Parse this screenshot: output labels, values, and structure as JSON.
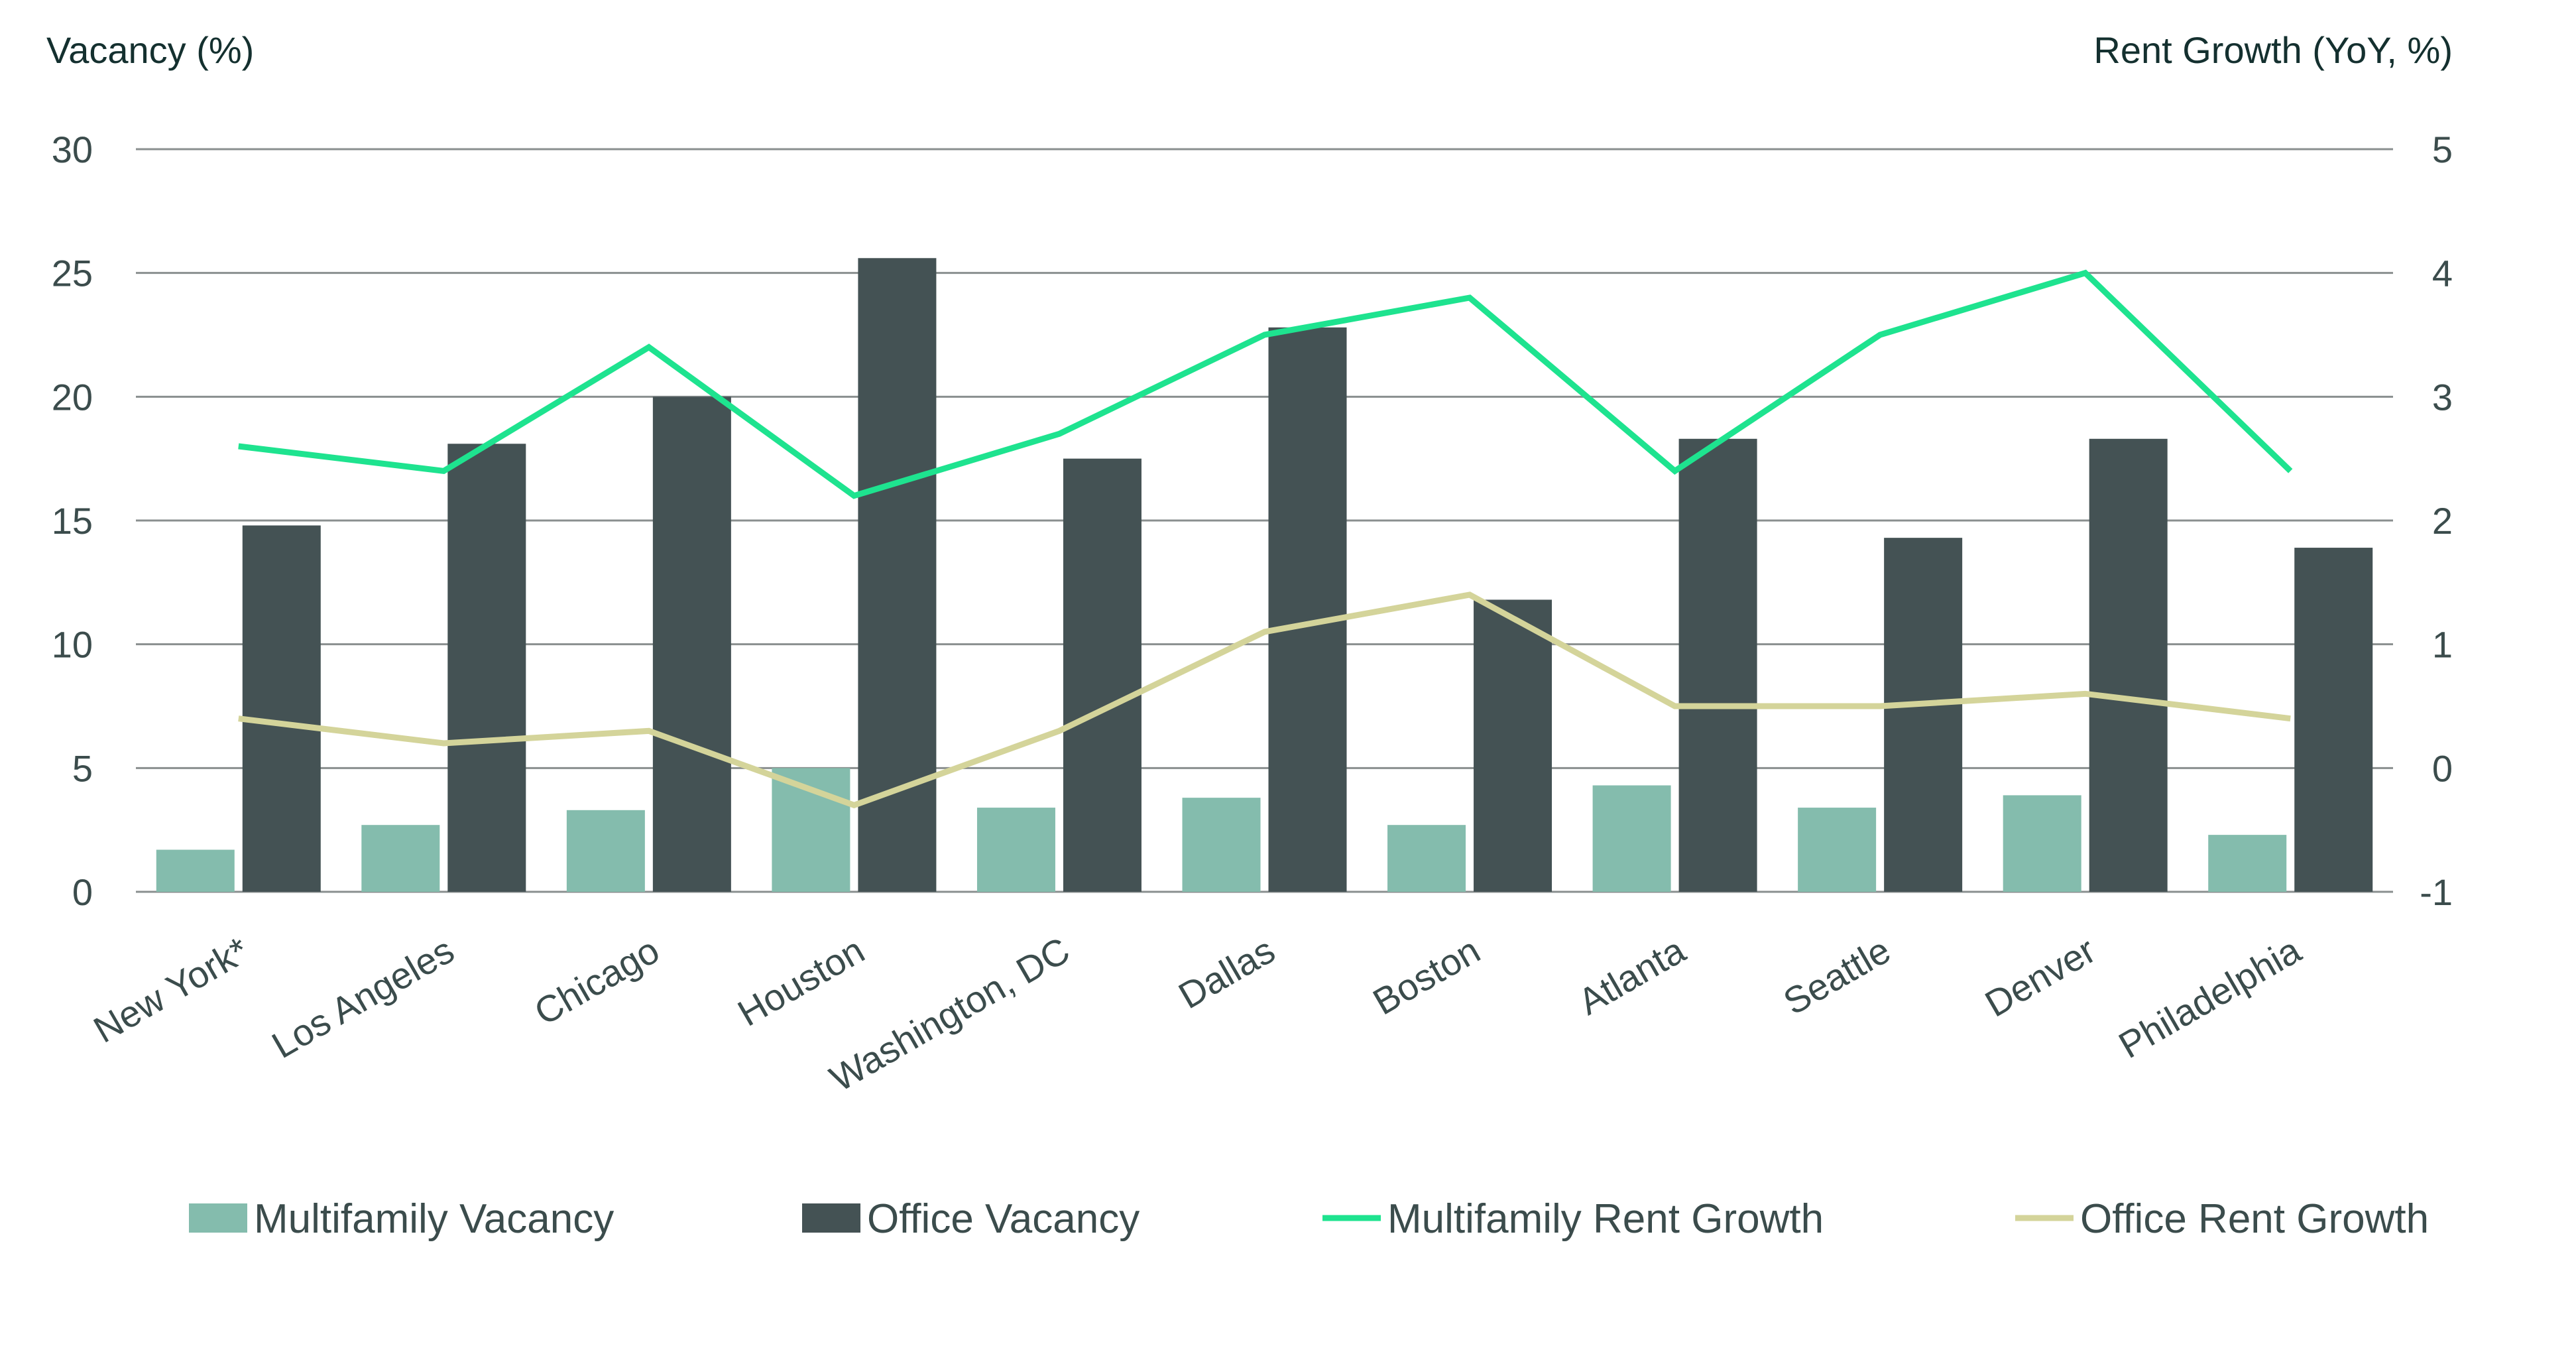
{
  "chart_data": {
    "type": "bar",
    "categories": [
      "New York*",
      "Los Angeles",
      "Chicago",
      "Houston",
      "Washington, DC",
      "Dallas",
      "Boston",
      "Atlanta",
      "Seattle",
      "Denver",
      "Philadelphia"
    ],
    "y_left": {
      "label": "Vacancy (%)",
      "ylim": [
        0,
        30
      ],
      "ticks": [
        0,
        5,
        10,
        15,
        20,
        25,
        30
      ]
    },
    "y_right": {
      "label": "Rent Growth (YoY, %)",
      "ylim": [
        -1,
        5
      ],
      "ticks": [
        -1,
        0,
        1,
        2,
        3,
        4,
        5
      ]
    },
    "grid": true,
    "legend_position": "bottom",
    "series": [
      {
        "name": "Multifamily Vacancy",
        "type": "bar",
        "axis": "left",
        "color": "#84bcad",
        "values": [
          1.7,
          2.7,
          3.3,
          5.0,
          3.4,
          3.8,
          2.7,
          4.3,
          3.4,
          3.9,
          2.3
        ]
      },
      {
        "name": "Office Vacancy",
        "type": "bar",
        "axis": "left",
        "color": "#445254",
        "values": [
          14.8,
          18.1,
          20.0,
          25.6,
          17.5,
          22.8,
          11.8,
          18.3,
          14.3,
          18.3,
          13.9
        ]
      },
      {
        "name": "Multifamily Rent Growth",
        "type": "line",
        "axis": "right",
        "color": "#1ee38f",
        "values": [
          2.6,
          2.4,
          3.4,
          2.2,
          2.7,
          3.5,
          3.8,
          2.4,
          3.5,
          4.0,
          2.4
        ]
      },
      {
        "name": "Office Rent Growth",
        "type": "line",
        "axis": "right",
        "color": "#d4d49a",
        "values": [
          0.4,
          0.2,
          0.3,
          -0.3,
          0.3,
          1.1,
          1.4,
          0.5,
          0.5,
          0.6,
          0.4
        ]
      }
    ]
  }
}
